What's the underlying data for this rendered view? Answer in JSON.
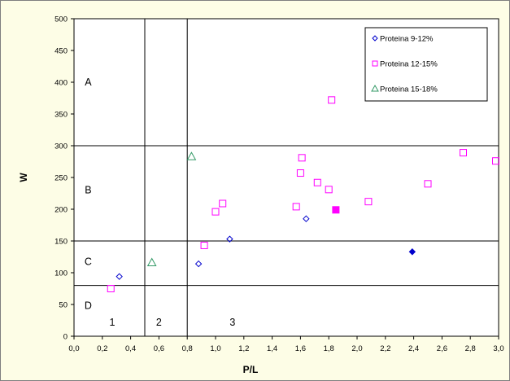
{
  "chart_data": {
    "type": "scatter",
    "title": "",
    "xlabel": "P/L",
    "ylabel": "W",
    "xlim": [
      0,
      3.0
    ],
    "ylim": [
      0,
      500
    ],
    "x_ticks": [
      "0,0",
      "0,2",
      "0,4",
      "0,6",
      "0,8",
      "1,0",
      "1,2",
      "1,4",
      "1,6",
      "1,8",
      "2,0",
      "2,2",
      "2,4",
      "2,6",
      "2,8",
      "3,0"
    ],
    "y_ticks": [
      "0",
      "50",
      "100",
      "150",
      "200",
      "250",
      "300",
      "350",
      "400",
      "450",
      "500"
    ],
    "grid": false,
    "legend_position": "top-right",
    "vertical_lines": [
      0.5,
      0.8
    ],
    "horizontal_lines": [
      80,
      150,
      300
    ],
    "region_labels": [
      {
        "text": "A",
        "x": 0.1,
        "y": 400
      },
      {
        "text": "B",
        "x": 0.1,
        "y": 230
      },
      {
        "text": "C",
        "x": 0.1,
        "y": 117
      },
      {
        "text": "D",
        "x": 0.1,
        "y": 48
      },
      {
        "text": "1",
        "x": 0.27,
        "y": 22
      },
      {
        "text": "2",
        "x": 0.6,
        "y": 22
      },
      {
        "text": "3",
        "x": 1.12,
        "y": 22
      }
    ],
    "series": [
      {
        "name": "Proteina 9-12%",
        "marker": "diamond",
        "color": "#0000cc",
        "points": [
          {
            "x": 0.32,
            "y": 94
          },
          {
            "x": 0.88,
            "y": 114
          },
          {
            "x": 1.1,
            "y": 153
          },
          {
            "x": 1.64,
            "y": 185
          },
          {
            "x": 2.39,
            "y": 133,
            "filled": true
          }
        ]
      },
      {
        "name": "Proteina 12-15%",
        "marker": "square",
        "color": "#ff00ff",
        "points": [
          {
            "x": 0.26,
            "y": 75
          },
          {
            "x": 0.92,
            "y": 143
          },
          {
            "x": 1.0,
            "y": 196
          },
          {
            "x": 1.05,
            "y": 209
          },
          {
            "x": 1.57,
            "y": 204
          },
          {
            "x": 1.6,
            "y": 257
          },
          {
            "x": 1.61,
            "y": 281
          },
          {
            "x": 1.72,
            "y": 242
          },
          {
            "x": 1.8,
            "y": 231
          },
          {
            "x": 1.82,
            "y": 372
          },
          {
            "x": 1.85,
            "y": 199,
            "filled": true
          },
          {
            "x": 2.08,
            "y": 212
          },
          {
            "x": 2.5,
            "y": 240
          },
          {
            "x": 2.75,
            "y": 289
          },
          {
            "x": 2.98,
            "y": 276
          }
        ]
      },
      {
        "name": "Proteina 15-18%",
        "marker": "triangle",
        "color": "#339966",
        "points": [
          {
            "x": 0.55,
            "y": 116
          },
          {
            "x": 0.83,
            "y": 283
          }
        ]
      }
    ]
  }
}
